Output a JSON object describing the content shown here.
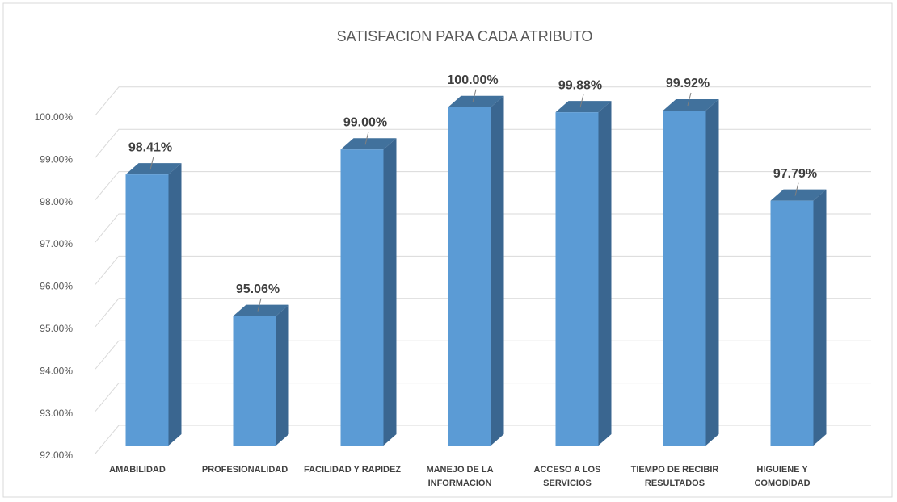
{
  "chart_data": {
    "type": "bar3d",
    "title": "SATISFACION PARA CADA ATRIBUTO",
    "categories": [
      "AMABILIDAD",
      "PROFESIONALIDAD",
      "FACILIDAD Y RAPIDEZ",
      "MANEJO DE LA INFORMACION",
      "ACCESO A LOS SERVICIOS",
      "TIEMPO DE RECIBIR RESULTADOS",
      "HIGUIENE Y COMODIDAD"
    ],
    "values": [
      98.41,
      95.06,
      99.0,
      100.0,
      99.88,
      99.92,
      97.79
    ],
    "value_labels": [
      "98.41%",
      "95.06%",
      "99.00%",
      "100.00%",
      "99.88%",
      "99.92%",
      "97.79%"
    ],
    "color": "#5b9bd5",
    "ylim": [
      92,
      100.5
    ],
    "yticks": [
      {
        "value": 92,
        "label": "92.00%"
      },
      {
        "value": 93,
        "label": "93.00%"
      },
      {
        "value": 94,
        "label": "94.00%"
      },
      {
        "value": 95,
        "label": "95.00%"
      },
      {
        "value": 96,
        "label": "96.00%"
      },
      {
        "value": 97,
        "label": "97.00%"
      },
      {
        "value": 98,
        "label": "98.00%"
      },
      {
        "value": 99,
        "label": "99.00%"
      },
      {
        "value": 100,
        "label": "100.00%"
      }
    ],
    "grid": true
  }
}
